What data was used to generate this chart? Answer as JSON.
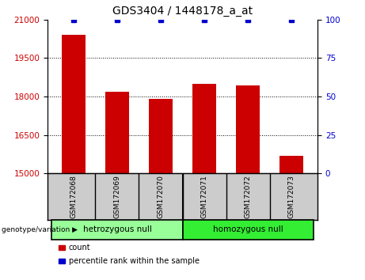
{
  "title": "GDS3404 / 1448178_a_at",
  "samples": [
    "GSM172068",
    "GSM172069",
    "GSM172070",
    "GSM172071",
    "GSM172072",
    "GSM172073"
  ],
  "counts": [
    20400,
    18200,
    17900,
    18500,
    18450,
    15700
  ],
  "percentiles": [
    100,
    100,
    100,
    100,
    100,
    100
  ],
  "ylim_left": [
    15000,
    21000
  ],
  "ylim_right": [
    0,
    100
  ],
  "yticks_left": [
    15000,
    16500,
    18000,
    19500,
    21000
  ],
  "yticks_right": [
    0,
    25,
    50,
    75,
    100
  ],
  "bar_color": "#cc0000",
  "dot_color": "#0000cc",
  "groups": [
    {
      "label": "hetrozygous null",
      "color": "#99ff99"
    },
    {
      "label": "homozygous null",
      "color": "#33ee33"
    }
  ],
  "group_label": "genotype/variation",
  "legend_items": [
    {
      "label": "count",
      "color": "#cc0000"
    },
    {
      "label": "percentile rank within the sample",
      "color": "#0000cc"
    }
  ],
  "title_fontsize": 10,
  "tick_fontsize": 7.5,
  "bar_width": 0.55,
  "sample_box_bg": "#cccccc",
  "background_color": "#ffffff"
}
